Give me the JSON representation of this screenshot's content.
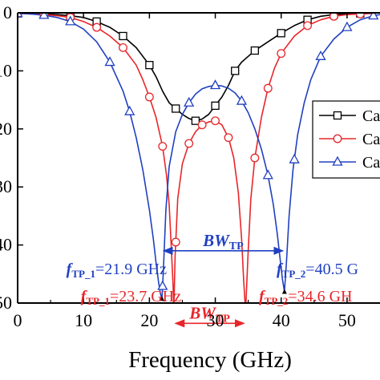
{
  "chart_data": {
    "type": "line",
    "xlabel": "Frequency (GHz)",
    "ylabel": "",
    "xlim": [
      0,
      55
    ],
    "ylim": [
      -50,
      0
    ],
    "x_ticks": [
      0,
      10,
      20,
      30,
      40,
      50
    ],
    "y_ticks": [
      0,
      -10,
      -20,
      -30,
      -40,
      -50
    ],
    "y_tick_labels": [
      "0",
      "10",
      "20",
      "30",
      "40",
      "50"
    ],
    "grid": false,
    "legend": {
      "position": "right",
      "entries": [
        "Ca",
        "Ca",
        "Ca"
      ]
    },
    "series": [
      {
        "color": "#000000",
        "marker": "square",
        "x": [
          0,
          2,
          4,
          6,
          8,
          10,
          12,
          14,
          16,
          18,
          20,
          21,
          22,
          23,
          24,
          25,
          26,
          27,
          28,
          29,
          30,
          31,
          32,
          33,
          34,
          35,
          36,
          38,
          40,
          42,
          44,
          46,
          48,
          50,
          52,
          54,
          55
        ],
        "y": [
          -0.1,
          -0.1,
          -0.2,
          -0.3,
          -0.5,
          -0.8,
          -1.5,
          -2.5,
          -4,
          -6,
          -9,
          -11,
          -13.5,
          -15.5,
          -16.5,
          -17.5,
          -18.2,
          -18.6,
          -18.3,
          -17.5,
          -16,
          -14.5,
          -12.5,
          -10,
          -8.5,
          -7.5,
          -6.5,
          -5,
          -3.5,
          -2.2,
          -1.2,
          -0.6,
          -0.3,
          -0.2,
          -0.1,
          0,
          0
        ],
        "marker_x": [
          0,
          4,
          8,
          12,
          16,
          20,
          24,
          27,
          30,
          33,
          36,
          40,
          44,
          48,
          52
        ]
      },
      {
        "color": "#e8262a",
        "marker": "circle",
        "x": [
          0,
          2,
          4,
          6,
          8,
          10,
          12,
          14,
          16,
          18,
          19,
          20,
          21,
          22,
          22.6,
          23.0,
          23.3,
          23.6,
          23.7,
          23.9,
          24.3,
          25,
          26,
          27,
          28,
          29,
          30,
          31,
          32,
          32.8,
          33.5,
          34.0,
          34.3,
          34.6,
          35.0,
          35.4,
          36,
          37,
          38,
          39,
          40,
          42,
          44,
          46,
          48,
          50,
          52,
          54,
          55
        ],
        "y": [
          -0.1,
          -0.2,
          -0.3,
          -0.5,
          -0.8,
          -1.5,
          -2.5,
          -4,
          -6,
          -9,
          -11.5,
          -14.5,
          -18,
          -23,
          -28,
          -33,
          -40,
          -47,
          -51.5,
          -42,
          -32,
          -26,
          -22.5,
          -20.5,
          -19.3,
          -18.8,
          -18.6,
          -19.3,
          -21.5,
          -25,
          -31,
          -39,
          -46,
          -51.5,
          -41,
          -32,
          -25,
          -18,
          -13,
          -9.5,
          -7,
          -4,
          -2.2,
          -1.2,
          -0.6,
          -0.3,
          -0.2,
          -0.1,
          0
        ],
        "marker_x": [
          0,
          4,
          8,
          12,
          16,
          20,
          22,
          24,
          26,
          28,
          30,
          32,
          36,
          38,
          40,
          44,
          48,
          52
        ]
      },
      {
        "color": "#2040c0",
        "marker": "triangle",
        "x": [
          0,
          2,
          4,
          6,
          8,
          10,
          12,
          14,
          16,
          17,
          18,
          19,
          20,
          20.6,
          21.0,
          21.4,
          21.7,
          21.9,
          22.1,
          22.5,
          23,
          24,
          25,
          26,
          27,
          28,
          29,
          30,
          31,
          32,
          33,
          34,
          35,
          36,
          37,
          38,
          38.8,
          39.4,
          39.9,
          40.2,
          40.5,
          40.8,
          41.2,
          41.8,
          42.5,
          43.5,
          44.5,
          46,
          48,
          50,
          52,
          54,
          55
        ],
        "y": [
          -0.1,
          -0.2,
          -0.4,
          -0.8,
          -1.5,
          -2.8,
          -5,
          -8.5,
          -13.5,
          -17,
          -21.5,
          -27,
          -34,
          -39,
          -43,
          -46.5,
          -48.5,
          -49.2,
          -45,
          -34,
          -26.5,
          -20.5,
          -17.5,
          -15.5,
          -14,
          -13.1,
          -12.7,
          -12.5,
          -12.6,
          -13,
          -13.8,
          -15.2,
          -17.2,
          -20,
          -23.5,
          -28,
          -33,
          -38,
          -43,
          -46,
          -48,
          -43,
          -35,
          -27,
          -21,
          -15.5,
          -11.5,
          -7.5,
          -4.5,
          -2.5,
          -1.2,
          -0.5,
          -0.3
        ],
        "marker_x": [
          0,
          4,
          8,
          14,
          17,
          22,
          26,
          30,
          34,
          38,
          42,
          46,
          50,
          54
        ]
      }
    ],
    "bandwidth_arrows": [
      {
        "label": "BW",
        "subscript": "TP",
        "x_start": 21.9,
        "x_end": 40.5,
        "y": -41,
        "color": "#2040c0"
      },
      {
        "label": "BW",
        "subscript": "TP",
        "x_start": 23.7,
        "x_end": 34.6,
        "y": -53.5,
        "color": "#e8262a"
      }
    ],
    "annotations": [
      {
        "italic": "f",
        "subscript": "TP_1",
        "text": "=21.9 GHz",
        "color": "#2040c0",
        "anchor": "end",
        "at": [
          21.9,
          -49
        ]
      },
      {
        "italic": "f",
        "subscript": "TP_1",
        "text": "=23.7 GHz",
        "color": "#e8262a",
        "anchor": "end",
        "at": [
          23.7,
          -54.5
        ]
      },
      {
        "italic": "f",
        "subscript": "TP_2",
        "text": "=40.5 G",
        "color": "#2040c0",
        "anchor": "start",
        "at": [
          40.5,
          -49
        ]
      },
      {
        "italic": "f",
        "subscript": "TP_2",
        "text": "=34.6 GH",
        "color": "#e8262a",
        "anchor": "start",
        "at": [
          34.6,
          -54.5
        ]
      }
    ]
  }
}
